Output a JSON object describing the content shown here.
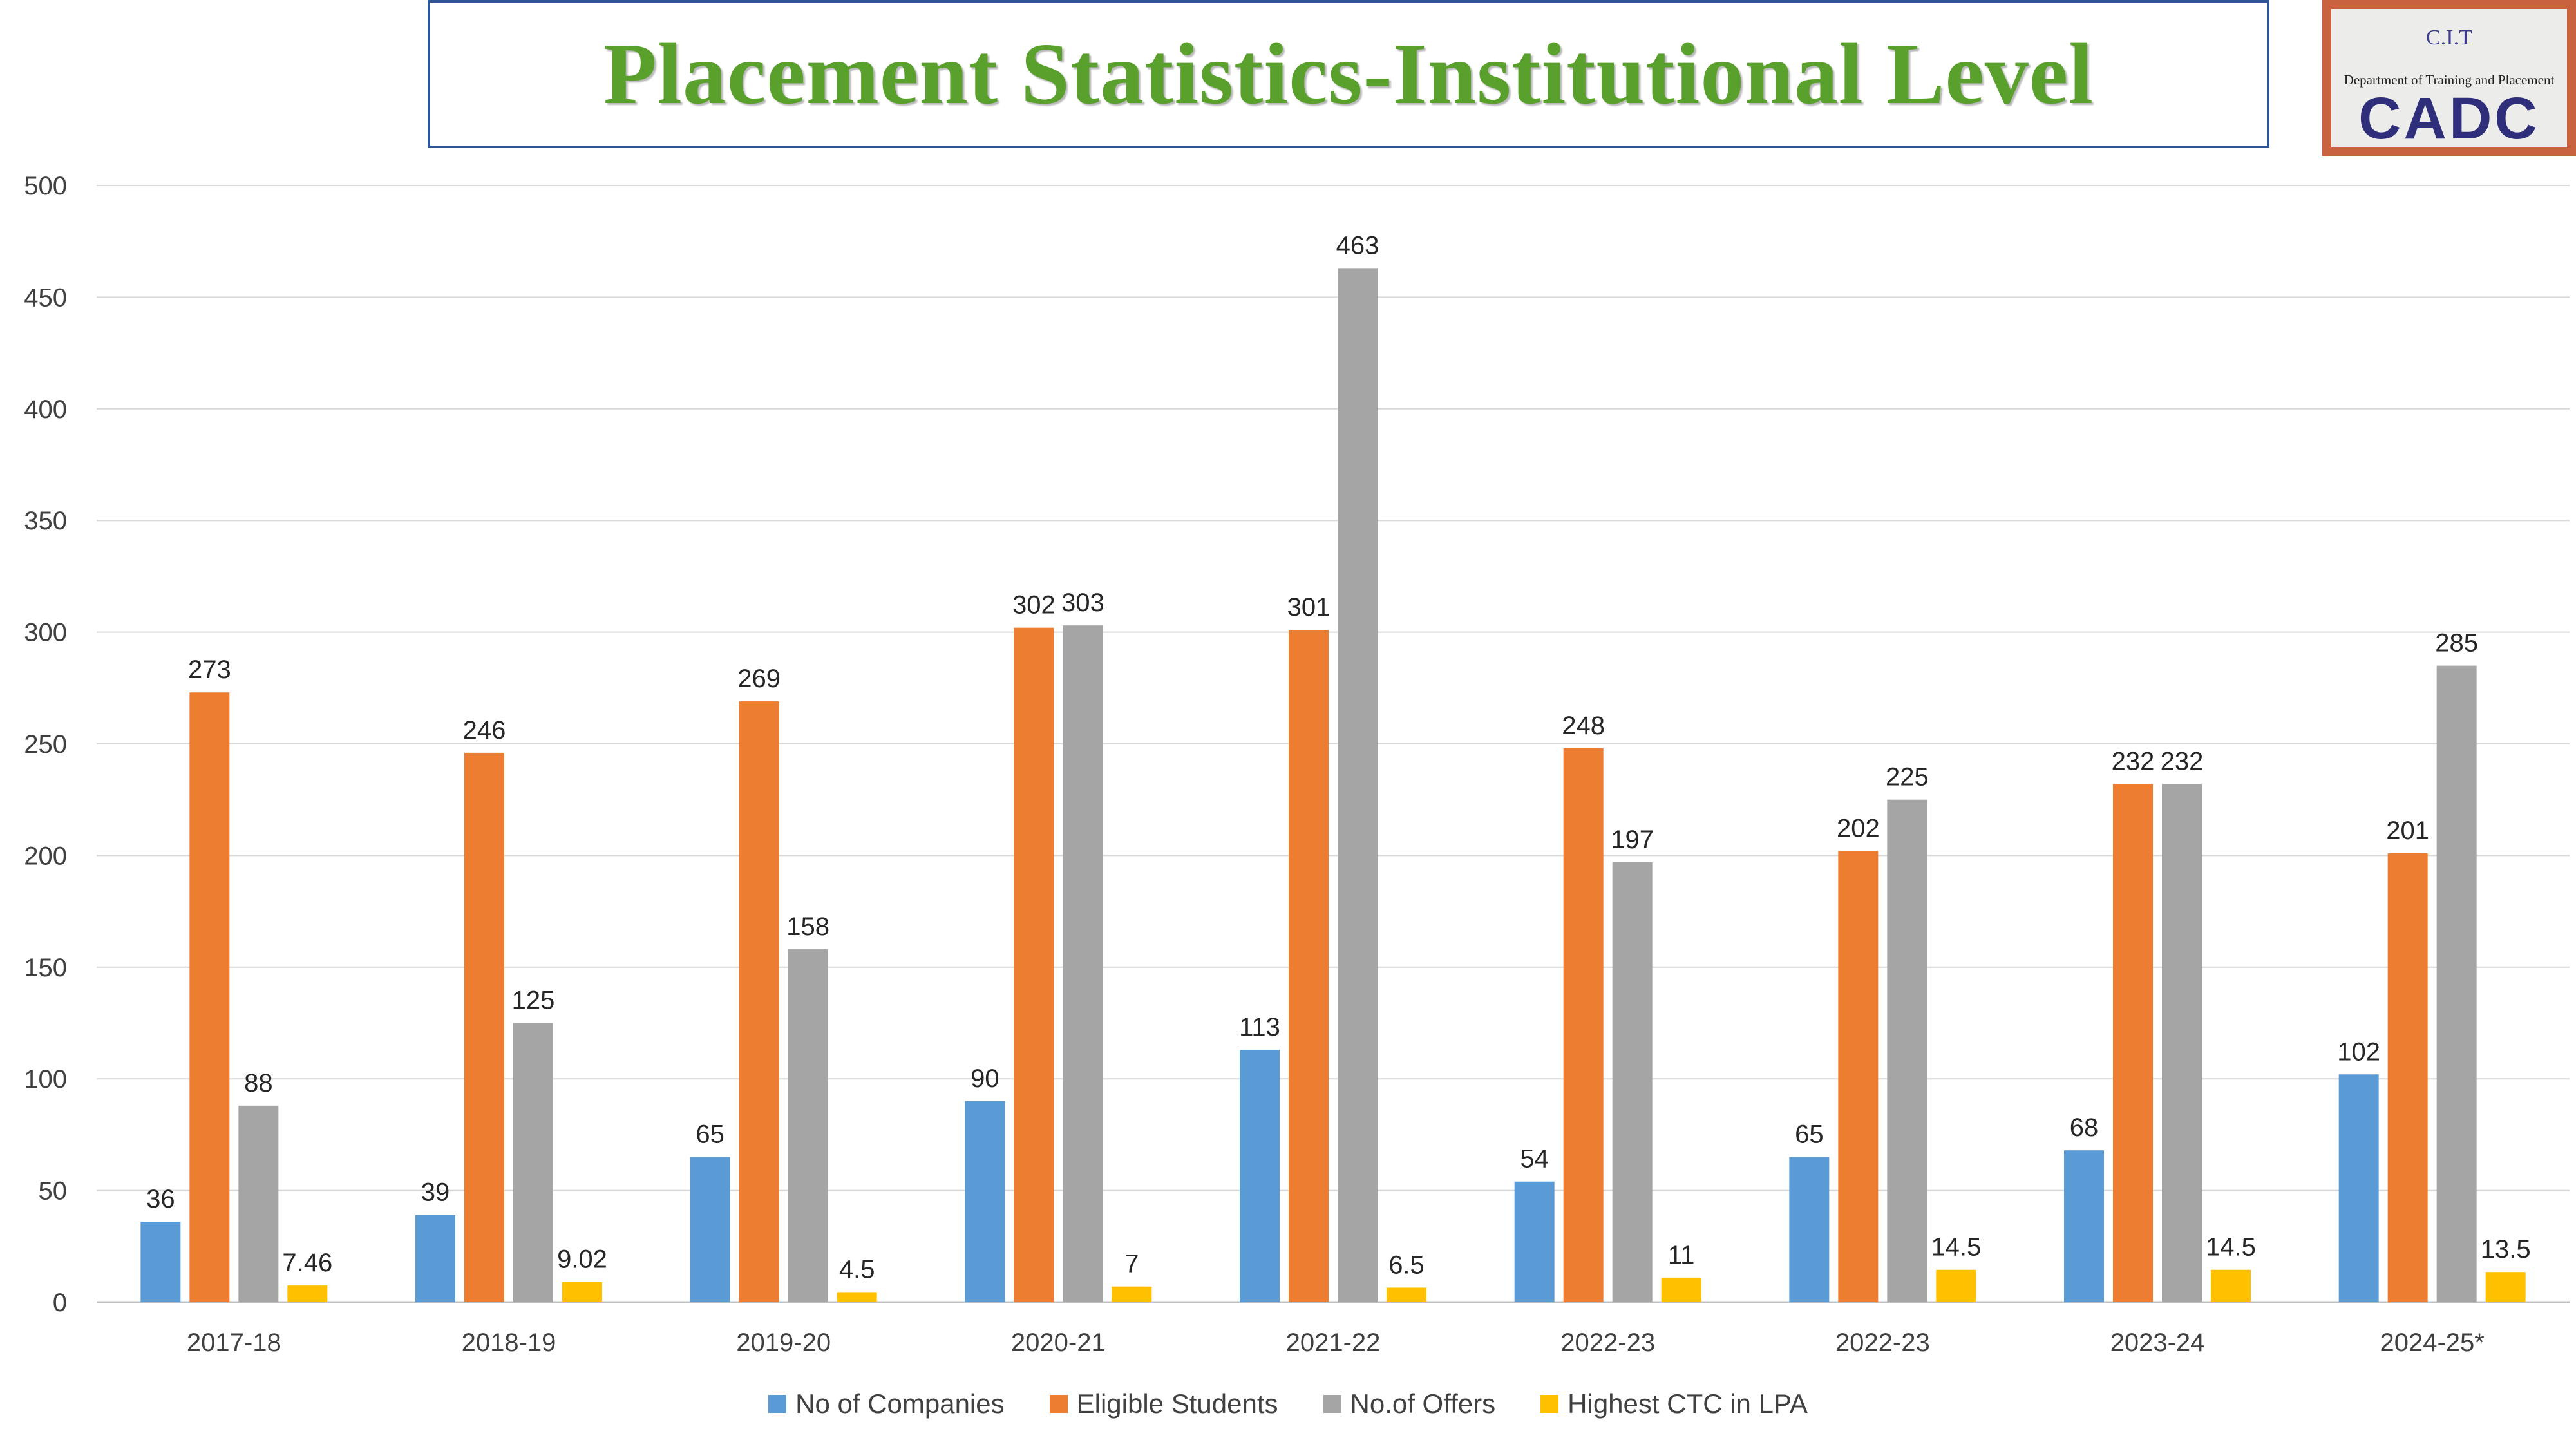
{
  "header": {
    "title": "Placement Statistics-Institutional Level"
  },
  "logo": {
    "top_text": "C.I.T",
    "department_text": "Department of Training and Placement",
    "brand_text": "CADC"
  },
  "chart_data": {
    "type": "bar",
    "title": "Placement Statistics-Institutional Level",
    "xlabel": "",
    "ylabel": "",
    "ylim": [
      0,
      500
    ],
    "yticks": [
      0,
      50,
      100,
      150,
      200,
      250,
      300,
      350,
      400,
      450,
      500
    ],
    "grid": true,
    "legend_position": "bottom",
    "categories": [
      "2017-18",
      "2018-19",
      "2019-20",
      "2020-21",
      "2021-22",
      "2022-23",
      "2022-23",
      "2023-24",
      "2024-25*"
    ],
    "series": [
      {
        "name": "No of Companies",
        "color": "#5b9bd5",
        "values": [
          36,
          39,
          65,
          90,
          113,
          54,
          65,
          68,
          102
        ]
      },
      {
        "name": "Eligible Students",
        "color": "#ed7d31",
        "values": [
          273,
          246,
          269,
          302,
          301,
          248,
          202,
          232,
          201
        ]
      },
      {
        "name": "No.of Offers",
        "color": "#a5a5a5",
        "values": [
          88,
          125,
          158,
          303,
          463,
          197,
          225,
          232,
          285
        ]
      },
      {
        "name": "Highest CTC in LPA",
        "color": "#ffc000",
        "values": [
          7.46,
          9.02,
          4.5,
          7,
          6.5,
          11,
          14.5,
          14.5,
          13.5
        ]
      }
    ]
  }
}
